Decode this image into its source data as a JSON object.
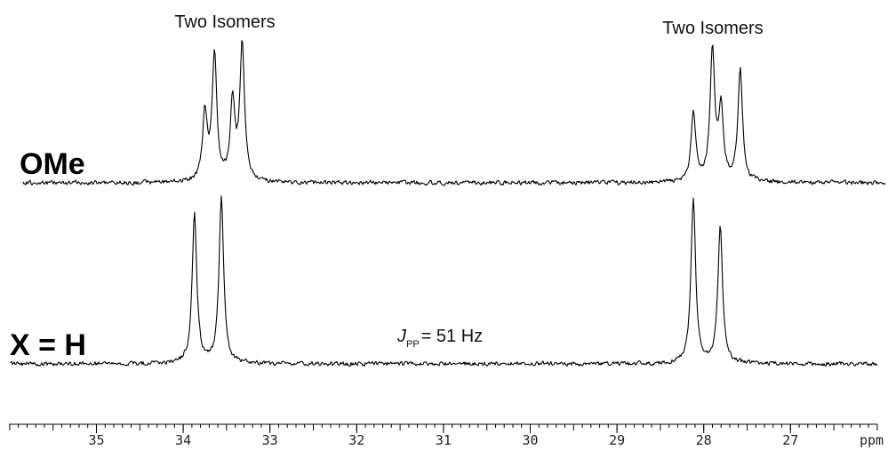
{
  "chart_data": {
    "type": "line",
    "xlabel": "ppm",
    "xlim": [
      36.0,
      26.0
    ],
    "x_reversed": true,
    "major_ticks": [
      35,
      34,
      33,
      32,
      31,
      30,
      29,
      28,
      27
    ],
    "minor_tick_step": 0.1,
    "series": [
      {
        "name": "OMe",
        "peaks": [
          {
            "ppm": 33.75,
            "intensity": 0.45
          },
          {
            "ppm": 33.64,
            "intensity": 0.85
          },
          {
            "ppm": 33.43,
            "intensity": 0.53
          },
          {
            "ppm": 33.32,
            "intensity": 0.92
          },
          {
            "ppm": 28.12,
            "intensity": 0.46
          },
          {
            "ppm": 27.9,
            "intensity": 0.88
          },
          {
            "ppm": 27.8,
            "intensity": 0.49
          },
          {
            "ppm": 27.58,
            "intensity": 0.75
          }
        ]
      },
      {
        "name": "X = H",
        "peaks": [
          {
            "ppm": 33.87,
            "intensity": 0.88
          },
          {
            "ppm": 33.56,
            "intensity": 0.98
          },
          {
            "ppm": 28.12,
            "intensity": 0.98
          },
          {
            "ppm": 27.81,
            "intensity": 0.81
          }
        ]
      }
    ],
    "annotations": {
      "left_isomers": "Two Isomers",
      "right_isomers": "Two Isomers",
      "coupling_main": "J",
      "coupling_sub": "PP",
      "coupling_value": "= 51 Hz"
    }
  }
}
